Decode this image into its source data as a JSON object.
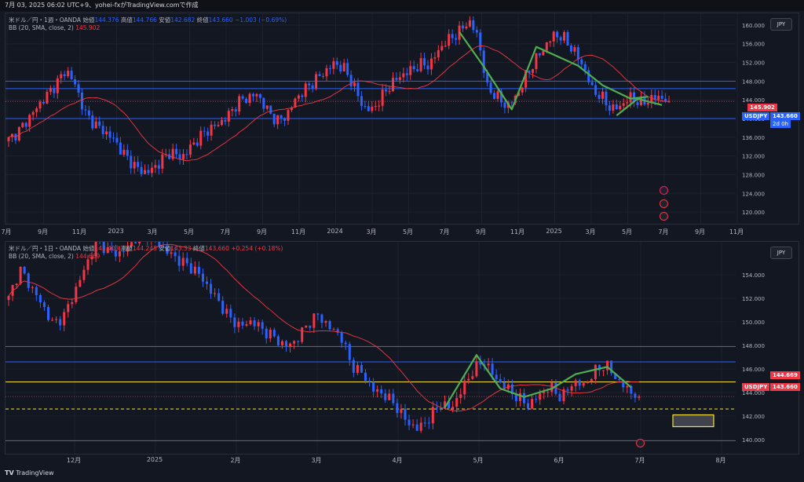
{
  "header": {
    "text": "7月 03, 2025 06:02 UTC+9、yohei-fxがTradingView.comで作成"
  },
  "footer": {
    "brand": "TradingView",
    "logo_icon": "tradingview-logo-icon"
  },
  "colors": {
    "bg": "#131722",
    "bull": "#f23645",
    "bear": "#2962ff",
    "bb": "#f23645",
    "swing": "#4caf50",
    "hline": "#2962ff",
    "yellow": "#f7e034"
  },
  "weekly": {
    "legend_title": "米ドル／円・1週・OANDA",
    "legend_open_label": "始値",
    "legend_open": "144.376",
    "legend_high_label": "高値",
    "legend_high": "144.766",
    "legend_low_label": "安値",
    "legend_low": "142.682",
    "legend_close_label": "終値",
    "legend_close": "143.660",
    "legend_change": "−1.003 (−0.69%)",
    "bb_label": "BB (20, SMA, close, 2)",
    "bb_value": "145.902",
    "symbol_button": "JPY",
    "price_tag_bb": "145.902",
    "price_tag_symbol": "USDJPY",
    "price_tag_close": "143.660",
    "price_tag_timer": "2d 0h"
  },
  "daily": {
    "legend_title": "米ドル／円・1日・OANDA",
    "legend_open_label": "始値",
    "legend_open": "143.403",
    "legend_high_label": "高値",
    "legend_high": "144.248",
    "legend_low_label": "安値",
    "legend_low": "143.33",
    "legend_close_label": "終値",
    "legend_close": "143.660",
    "legend_change": "+0.254 (+0.18%)",
    "bb_label": "BB (20, SMA, close, 2)",
    "bb_value": "144.669",
    "symbol_button": "JPY",
    "price_tag_bb": "144.669",
    "price_tag_symbol": "USDJPY",
    "price_tag_close": "143.660"
  },
  "chart_data": [
    {
      "type": "candlestick",
      "timeframe": "1W",
      "symbol": "USDJPY",
      "y_ticks": [
        "160.000",
        "156.000",
        "152.000",
        "148.000",
        "144.000",
        "140.000",
        "136.000",
        "132.000",
        "128.000",
        "124.000",
        "120.000"
      ],
      "ylim": [
        117.5,
        162.5
      ],
      "x_ticks": [
        "7月",
        "9月",
        "11月",
        "2023",
        "3月",
        "5月",
        "7月",
        "9月",
        "11月",
        "2024",
        "3月",
        "5月",
        "7月",
        "9月",
        "11月",
        "2025",
        "3月",
        "5月",
        "7月",
        "9月",
        "11月"
      ],
      "close_path": [
        135.5,
        137.2,
        139.8,
        142.5,
        145.0,
        147.5,
        150.5,
        147.0,
        141.0,
        138.8,
        137.2,
        135.5,
        132.5,
        130.2,
        128.5,
        129.0,
        131.2,
        133.0,
        131.5,
        133.8,
        136.2,
        137.8,
        138.9,
        140.8,
        143.6,
        144.5,
        145.2,
        141.8,
        139.5,
        140.5,
        144.2,
        146.3,
        148.2,
        149.9,
        151.8,
        150.8,
        147.3,
        142.5,
        141.8,
        144.7,
        147.5,
        149.2,
        150.3,
        151.6,
        151.4,
        154.9,
        157.0,
        158.3,
        160.9,
        157.9,
        146.5,
        144.8,
        142.5,
        144.5,
        148.8,
        152.4,
        155.3,
        158.0,
        157.2,
        154.6,
        151.4,
        146.1,
        144.5,
        141.9,
        142.8,
        144.6,
        143.2,
        144.1,
        144.7,
        143.66
      ],
      "horizontal_lines": [
        148.0,
        146.4,
        140.0
      ],
      "annotations": [
        "green swing lines over 2024–2025 price action"
      ],
      "price_tags": {
        "bb_upper": 145.902,
        "close": 143.66
      }
    },
    {
      "type": "candlestick",
      "timeframe": "1D",
      "symbol": "USDJPY",
      "y_ticks": [
        "154.000",
        "152.000",
        "150.000",
        "148.000",
        "146.000",
        "144.000",
        "142.000",
        "140.000"
      ],
      "ylim": [
        138.8,
        156.8
      ],
      "x_ticks": [
        "12月",
        "2025",
        "2月",
        "3月",
        "4月",
        "5月",
        "6月",
        "7月",
        "8月"
      ],
      "close_path": [
        152.0,
        154.5,
        153.0,
        151.5,
        149.8,
        150.5,
        152.6,
        154.8,
        157.0,
        156.0,
        155.8,
        156.5,
        157.8,
        157.3,
        156.2,
        155.5,
        154.9,
        154.3,
        153.0,
        151.7,
        150.3,
        149.6,
        150.1,
        149.3,
        148.7,
        147.9,
        148.4,
        149.8,
        150.6,
        149.5,
        148.9,
        146.3,
        145.6,
        144.2,
        143.8,
        142.9,
        141.5,
        140.9,
        141.8,
        143.1,
        142.6,
        144.3,
        145.9,
        146.7,
        145.2,
        144.4,
        143.6,
        142.9,
        143.8,
        144.5,
        143.5,
        144.9,
        144.6,
        145.8,
        146.4,
        145.1,
        144.2,
        143.66
      ],
      "horizontal_lines": [
        147.9,
        146.6,
        144.9,
        139.9
      ],
      "dashed_lines": [
        142.6
      ],
      "target_box": {
        "y_top": 142.1,
        "y_bottom": 141.1
      },
      "price_tags": {
        "bb_upper": 144.669,
        "close": 143.66
      }
    }
  ]
}
